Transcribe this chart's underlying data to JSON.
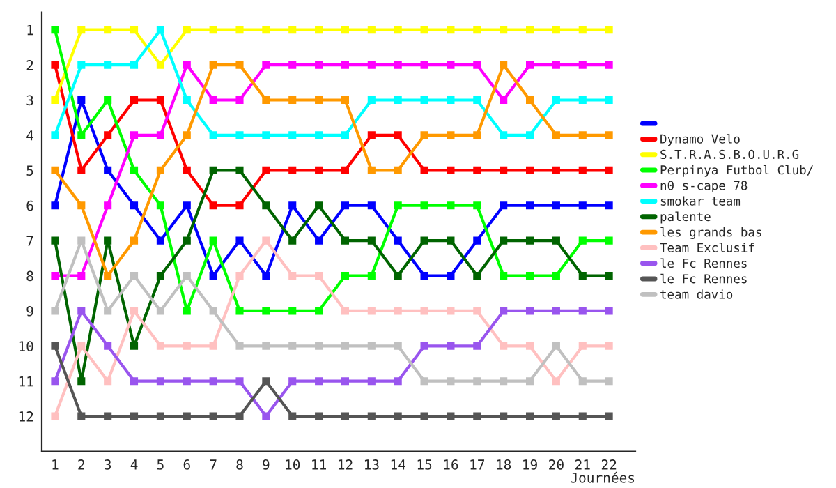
{
  "chart_data": {
    "type": "line",
    "xlabel": "Journées",
    "x": [
      1,
      2,
      3,
      4,
      5,
      6,
      7,
      8,
      9,
      10,
      11,
      12,
      13,
      14,
      15,
      16,
      17,
      18,
      19,
      20,
      21,
      22
    ],
    "xlim": [
      0.5,
      23
    ],
    "xticks": [
      1,
      2,
      3,
      4,
      5,
      6,
      7,
      8,
      9,
      10,
      11,
      12,
      13,
      14,
      15,
      16,
      17,
      18,
      19,
      20,
      21,
      22
    ],
    "ylim": [
      13,
      0.5
    ],
    "yticks": [
      1,
      2,
      3,
      4,
      5,
      6,
      7,
      8,
      9,
      10,
      11,
      12
    ],
    "grid": false,
    "legend": "right",
    "marker": "square",
    "line_style": "solid",
    "series": [
      {
        "color": "#0000ff",
        "values": [
          6,
          3,
          5,
          6,
          7,
          6,
          8,
          7,
          8,
          6,
          7,
          6,
          6,
          7,
          8,
          8,
          7,
          6,
          6,
          6,
          6,
          6
        ]
      },
      {
        "name": "Dynamo Velo",
        "color": "#ff0000",
        "values": [
          2,
          5,
          4,
          3,
          3,
          5,
          6,
          6,
          5,
          5,
          5,
          5,
          4,
          4,
          5,
          5,
          5,
          5,
          5,
          5,
          5,
          5
        ]
      },
      {
        "name": "S.T.R.A.S.B.O.U.R.G",
        "color": "#ffff00",
        "values": [
          3,
          1,
          1,
          1,
          2,
          1,
          1,
          1,
          1,
          1,
          1,
          1,
          1,
          1,
          1,
          1,
          1,
          1,
          1,
          1,
          1,
          1
        ]
      },
      {
        "name": "Perpinya Futbol Club/",
        "color": "#00ff00",
        "values": [
          1,
          4,
          3,
          5,
          6,
          9,
          7,
          9,
          9,
          9,
          9,
          8,
          8,
          6,
          6,
          6,
          6,
          8,
          8,
          8,
          7,
          7
        ]
      },
      {
        "name": "n0 s-cape 78",
        "color": "#ff00ff",
        "values": [
          8,
          8,
          6,
          4,
          4,
          2,
          3,
          3,
          2,
          2,
          2,
          2,
          2,
          2,
          2,
          2,
          2,
          3,
          2,
          2,
          2,
          2
        ]
      },
      {
        "name": "smokar team",
        "color": "#00ffff",
        "values": [
          4,
          2,
          2,
          2,
          1,
          3,
          4,
          4,
          4,
          4,
          4,
          4,
          3,
          3,
          3,
          3,
          3,
          4,
          4,
          3,
          3,
          3
        ]
      },
      {
        "name": "palente",
        "color": "#006400",
        "values": [
          7,
          11,
          7,
          10,
          8,
          7,
          5,
          5,
          6,
          7,
          6,
          7,
          7,
          8,
          7,
          7,
          8,
          7,
          7,
          7,
          8,
          8
        ]
      },
      {
        "name": "les grands bas",
        "color": "#ff9900",
        "values": [
          5,
          6,
          8,
          7,
          5,
          4,
          2,
          2,
          3,
          3,
          3,
          3,
          5,
          5,
          4,
          4,
          4,
          2,
          3,
          4,
          4,
          4
        ]
      },
      {
        "name": "Team Exclusif",
        "color": "#ffc0c0",
        "values": [
          12,
          10,
          11,
          9,
          10,
          10,
          10,
          8,
          7,
          8,
          8,
          9,
          9,
          9,
          9,
          9,
          9,
          10,
          10,
          11,
          10,
          10
        ]
      },
      {
        "name": "le Fc Rennes",
        "color": "#9955ee",
        "values": [
          11,
          9,
          10,
          11,
          11,
          11,
          11,
          11,
          12,
          11,
          11,
          11,
          11,
          11,
          10,
          10,
          10,
          9,
          9,
          9,
          9,
          9
        ]
      },
      {
        "name": "le Fc Rennes",
        "color": "#555555",
        "values": [
          10,
          12,
          12,
          12,
          12,
          12,
          12,
          12,
          11,
          12,
          12,
          12,
          12,
          12,
          12,
          12,
          12,
          12,
          12,
          12,
          12,
          12
        ]
      },
      {
        "name": "team davio",
        "color": "#c0c0c0",
        "values": [
          9,
          7,
          9,
          8,
          9,
          8,
          9,
          10,
          10,
          10,
          10,
          10,
          10,
          10,
          11,
          11,
          11,
          11,
          11,
          10,
          11,
          11
        ]
      }
    ]
  }
}
